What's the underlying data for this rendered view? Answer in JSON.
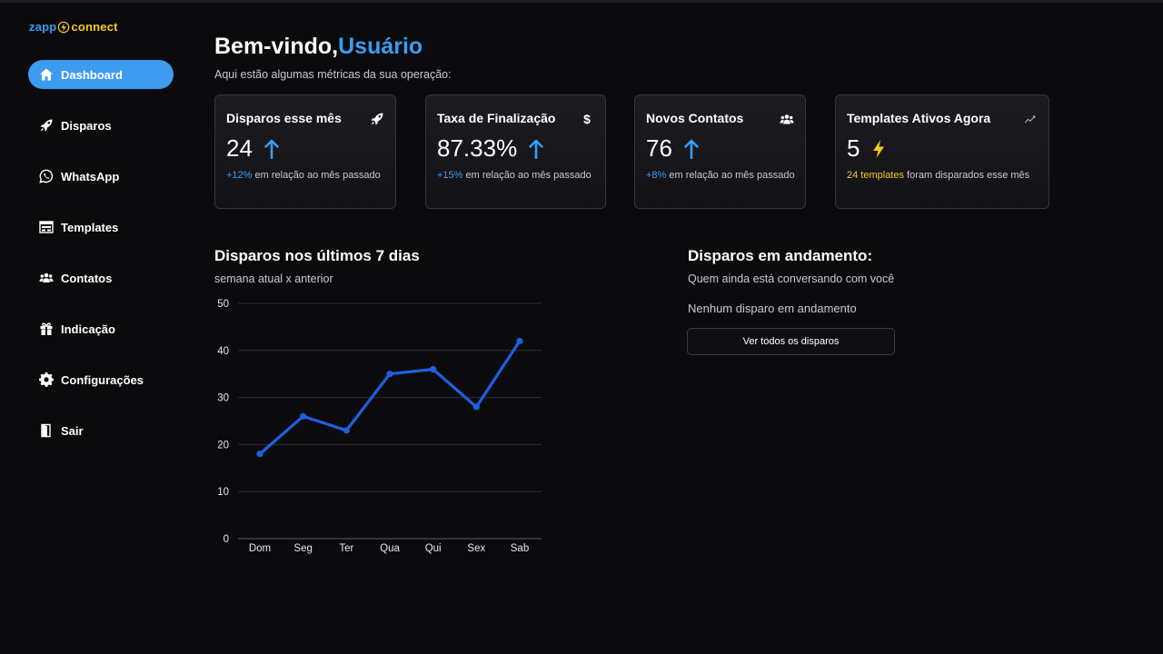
{
  "app": {
    "logo_left": "zapp",
    "logo_right": "connect"
  },
  "sidebar": {
    "items": [
      {
        "label": "Dashboard",
        "icon": "home-icon",
        "active": true
      },
      {
        "label": "Disparos",
        "icon": "rocket-icon",
        "active": false
      },
      {
        "label": "WhatsApp",
        "icon": "whatsapp-icon",
        "active": false
      },
      {
        "label": "Templates",
        "icon": "template-icon",
        "active": false
      },
      {
        "label": "Contatos",
        "icon": "users-icon",
        "active": false
      },
      {
        "label": "Indicação",
        "icon": "gift-icon",
        "active": false
      },
      {
        "label": "Configurações",
        "icon": "gear-icon",
        "active": false
      },
      {
        "label": "Sair",
        "icon": "door-icon",
        "active": false
      }
    ]
  },
  "header": {
    "greeting": "Bem-vindo,",
    "user": "Usuário",
    "subtitle": "Aqui estão algumas métricas da sua operação:"
  },
  "cards": [
    {
      "title": "Disparos esse mês",
      "value": "24",
      "note_highlight": "+12%",
      "note_text": " em relação ao mês passado",
      "icon": "rocket-icon"
    },
    {
      "title": "Taxa de Finalização",
      "value": "87.33%",
      "note_highlight": "+15%",
      "note_text": " em relação ao mês passado",
      "icon": "dollar-icon",
      "icon_text": "$"
    },
    {
      "title": "Novos Contatos",
      "value": "76",
      "note_highlight": "+8%",
      "note_text": " em relação ao mês passado",
      "icon": "users-icon"
    },
    {
      "title": "Templates Ativos Agora",
      "value": "5",
      "note_highlight": "24 templates",
      "note_text": " foram disparados esse mês",
      "icon": "trend-icon"
    }
  ],
  "chart_section": {
    "title": "Disparos nos últimos 7 dias",
    "subtitle": "semana atual x anterior"
  },
  "chart_data": {
    "type": "line",
    "categories": [
      "Dom",
      "Seg",
      "Ter",
      "Qua",
      "Qui",
      "Sex",
      "Sab"
    ],
    "series": [
      {
        "values": [
          18,
          26,
          23,
          35,
          36,
          28,
          42
        ]
      }
    ],
    "yticks": [
      0,
      10,
      20,
      30,
      40,
      50
    ],
    "ylim": [
      0,
      50
    ],
    "grid": true,
    "line_color": "#1f5fe0"
  },
  "ongoing": {
    "title": "Disparos em andamento:",
    "subtitle": "Quem ainda está conversando com você",
    "empty": "Nenhum disparo em andamento",
    "button": "Ver todos os disparos"
  },
  "colors": {
    "accent": "#3d9cf0",
    "yellow": "#f7c91c",
    "background": "#0b0b0e"
  }
}
